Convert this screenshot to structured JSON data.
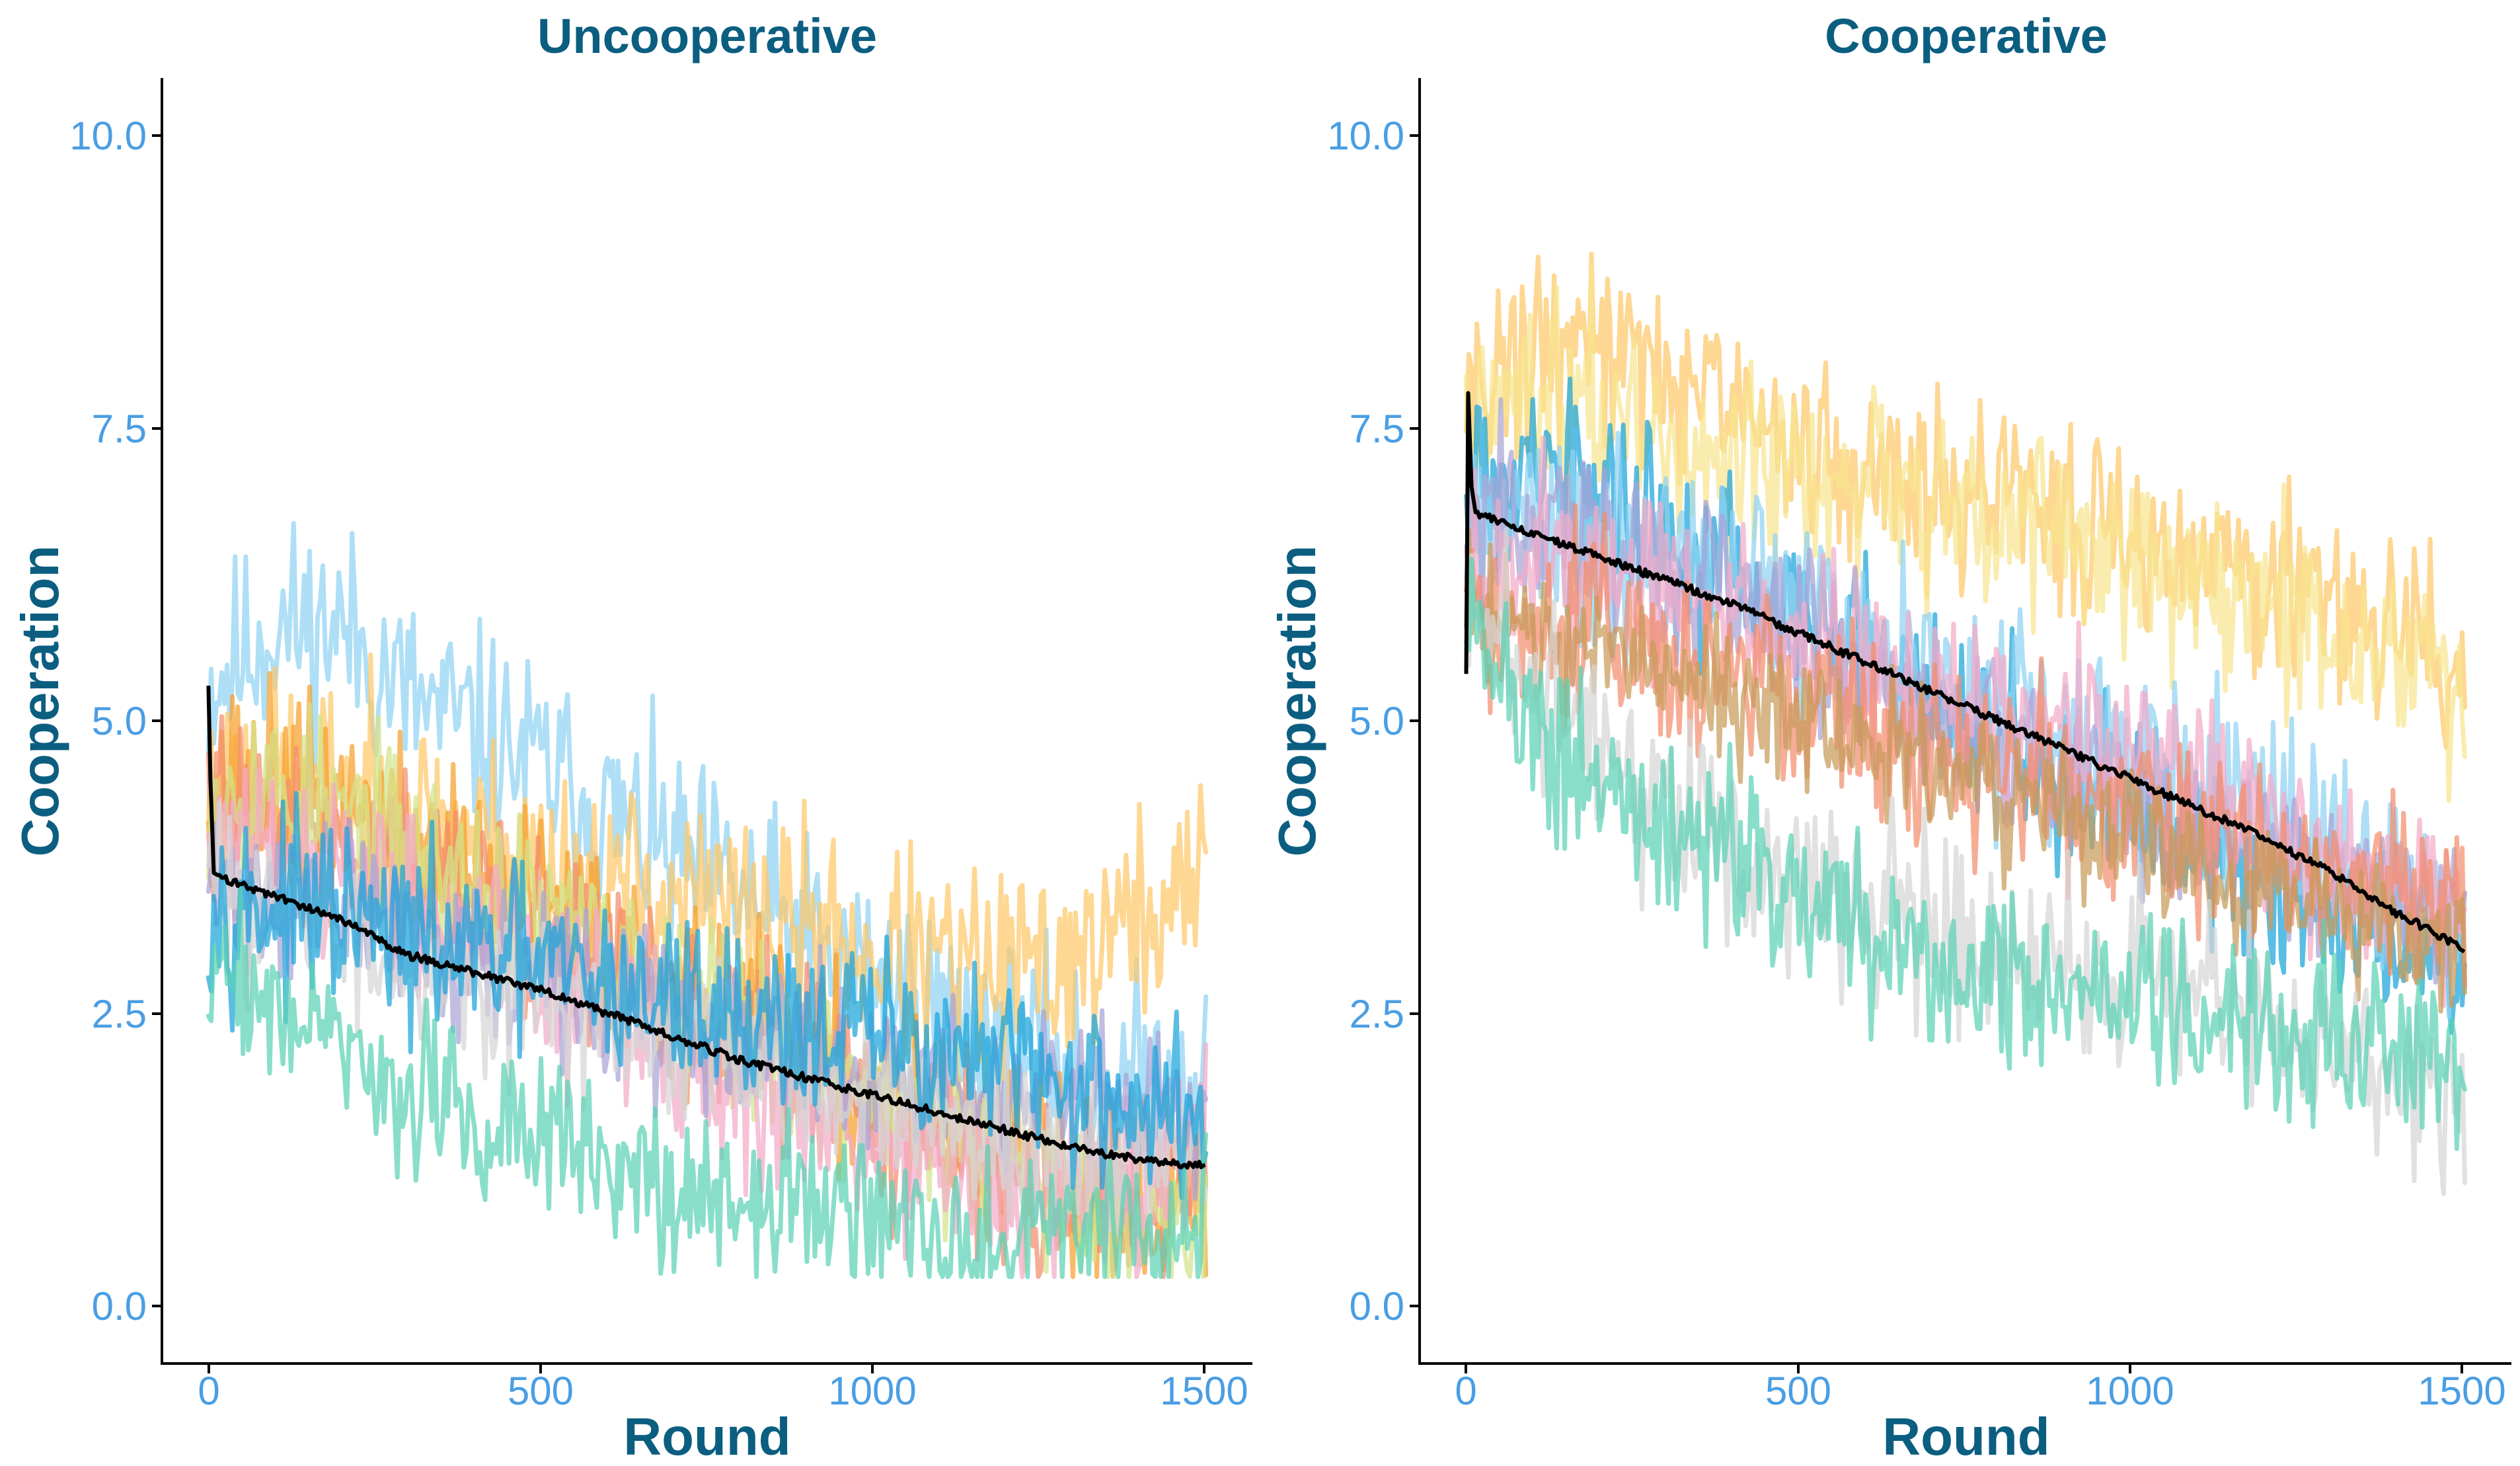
{
  "chart_data": [
    {
      "type": "line",
      "title": "Uncooperative",
      "xlabel": "Round",
      "ylabel": "Cooperation",
      "xlim": [
        -70,
        1570
      ],
      "ylim": [
        -0.5,
        10.5
      ],
      "xticks": [
        0,
        500,
        1000,
        1500
      ],
      "xtick_labels": [
        "0",
        "500",
        "1000",
        "1500"
      ],
      "yticks": [
        0,
        2.5,
        5,
        7.5,
        10
      ],
      "ytick_labels": [
        "0.0",
        "2.5",
        "5.0",
        "7.5",
        "10.0"
      ],
      "grid": false,
      "x": [
        0,
        100,
        200,
        300,
        400,
        500,
        600,
        700,
        800,
        900,
        1000,
        1100,
        1200,
        1300,
        1400,
        1500
      ],
      "series": [
        {
          "name": "light-blue",
          "color": "#8fd3f2",
          "noise": 0.45,
          "seed": 11,
          "values": [
            5.3,
            5.8,
            5.8,
            5.2,
            4.9,
            4.6,
            4.2,
            3.8,
            3.5,
            3.1,
            2.8,
            2.5,
            2.2,
            2.0,
            1.9,
            1.9
          ]
        },
        {
          "name": "light-orange",
          "color": "#fdc76a",
          "noise": 0.45,
          "seed": 23,
          "values": [
            4.4,
            4.5,
            4.4,
            4.2,
            4.0,
            3.8,
            3.6,
            3.5,
            3.3,
            3.2,
            3.0,
            2.9,
            2.8,
            3.0,
            3.3,
            3.6
          ]
        },
        {
          "name": "orange",
          "color": "#f7a02c",
          "noise": 0.4,
          "seed": 37,
          "values": [
            4.5,
            4.5,
            4.3,
            4.0,
            3.7,
            3.4,
            3.1,
            2.7,
            2.4,
            2.1,
            1.8,
            1.5,
            1.2,
            1.0,
            0.9,
            0.9
          ]
        },
        {
          "name": "salmon",
          "color": "#f28e6d",
          "noise": 0.4,
          "seed": 41,
          "values": [
            4.2,
            4.2,
            4.0,
            3.8,
            3.5,
            3.2,
            2.9,
            2.6,
            2.3,
            2.0,
            1.7,
            1.4,
            1.2,
            1.0,
            1.0,
            1.0
          ]
        },
        {
          "name": "yellow-green",
          "color": "#d2e38a",
          "noise": 0.4,
          "seed": 53,
          "values": [
            4.5,
            4.4,
            4.2,
            3.9,
            3.6,
            3.3,
            3.0,
            2.7,
            2.4,
            2.1,
            1.8,
            1.5,
            1.2,
            1.0,
            0.8,
            0.7
          ]
        },
        {
          "name": "pink",
          "color": "#f2aac8",
          "noise": 0.4,
          "seed": 61,
          "values": [
            3.9,
            3.8,
            3.6,
            3.4,
            3.1,
            2.8,
            2.5,
            2.2,
            1.9,
            1.6,
            1.4,
            1.2,
            1.1,
            1.1,
            1.2,
            1.3
          ]
        },
        {
          "name": "lavender",
          "color": "#a9a4d6",
          "noise": 0.35,
          "seed": 71,
          "values": [
            3.6,
            3.5,
            3.4,
            3.2,
            3.0,
            2.8,
            2.6,
            2.4,
            2.3,
            2.1,
            2.0,
            1.9,
            1.8,
            1.7,
            1.6,
            1.6
          ]
        },
        {
          "name": "gray",
          "color": "#d6d6d6",
          "noise": 0.35,
          "seed": 83,
          "values": [
            3.6,
            3.4,
            3.2,
            3.0,
            2.8,
            2.7,
            2.5,
            2.3,
            2.1,
            1.9,
            1.7,
            1.5,
            1.4,
            1.3,
            1.2,
            1.2
          ]
        },
        {
          "name": "blue",
          "color": "#1aa3d9",
          "noise": 0.38,
          "seed": 97,
          "values": [
            3.5,
            3.4,
            3.3,
            3.1,
            3.0,
            2.9,
            2.7,
            2.6,
            2.5,
            2.4,
            2.3,
            2.2,
            2.0,
            1.9,
            1.7,
            1.6
          ]
        },
        {
          "name": "teal",
          "color": "#5bd1b5",
          "noise": 0.35,
          "seed": 109,
          "values": [
            2.9,
            2.6,
            2.2,
            1.8,
            1.6,
            1.4,
            1.2,
            1.0,
            0.9,
            0.8,
            0.8,
            0.7,
            0.7,
            0.7,
            0.7,
            0.7
          ]
        }
      ],
      "mean_line": {
        "name": "mean",
        "color": "#000000",
        "start": [
          5.3,
          4.5,
          3.7
        ],
        "values": [
          3.7,
          3.5,
          3.3,
          3.0,
          2.85,
          2.7,
          2.5,
          2.3,
          2.1,
          1.95,
          1.8,
          1.65,
          1.5,
          1.35,
          1.25,
          1.2
        ]
      }
    },
    {
      "type": "line",
      "title": "Cooperative",
      "xlabel": "Round",
      "ylabel": "Cooperation",
      "xlim": [
        -70,
        1570
      ],
      "ylim": [
        -0.5,
        10.5
      ],
      "xticks": [
        0,
        500,
        1000,
        1500
      ],
      "xtick_labels": [
        "0",
        "500",
        "1000",
        "1500"
      ],
      "yticks": [
        0,
        2.5,
        5,
        7.5,
        10
      ],
      "ytick_labels": [
        "0.0",
        "2.5",
        "5.0",
        "7.5",
        "10.0"
      ],
      "grid": false,
      "x": [
        0,
        100,
        200,
        300,
        400,
        500,
        600,
        700,
        800,
        900,
        1000,
        1100,
        1200,
        1300,
        1400,
        1500
      ],
      "series": [
        {
          "name": "light-orange",
          "color": "#fdc76a",
          "noise": 0.4,
          "seed": 131,
          "values": [
            7.9,
            8.1,
            8.3,
            8.0,
            7.6,
            7.3,
            7.1,
            7.0,
            6.9,
            6.8,
            6.6,
            6.4,
            6.2,
            6.0,
            5.8,
            5.4
          ]
        },
        {
          "name": "pale-yellow",
          "color": "#f7e58f",
          "noise": 0.4,
          "seed": 149,
          "values": [
            7.6,
            7.9,
            7.7,
            7.4,
            7.2,
            7.0,
            6.9,
            6.8,
            6.7,
            6.6,
            6.4,
            6.2,
            6.0,
            5.8,
            5.5,
            5.2
          ]
        },
        {
          "name": "blue",
          "color": "#1aa3d9",
          "noise": 0.38,
          "seed": 157,
          "values": [
            7.2,
            7.1,
            6.9,
            6.6,
            6.3,
            6.0,
            5.6,
            5.2,
            4.9,
            4.6,
            4.3,
            4.0,
            3.6,
            3.3,
            3.0,
            2.9
          ]
        },
        {
          "name": "light-blue",
          "color": "#8fd3f2",
          "noise": 0.42,
          "seed": 163,
          "values": [
            6.8,
            6.7,
            6.6,
            6.4,
            6.2,
            5.9,
            5.6,
            5.3,
            5.0,
            4.8,
            4.6,
            4.4,
            4.2,
            3.9,
            3.6,
            3.3
          ]
        },
        {
          "name": "lavender",
          "color": "#a9a4d6",
          "noise": 0.35,
          "seed": 173,
          "values": [
            6.8,
            6.8,
            6.6,
            6.3,
            6.0,
            5.7,
            5.4,
            5.1,
            4.8,
            4.5,
            4.3,
            4.1,
            3.9,
            3.7,
            3.5,
            3.3
          ]
        },
        {
          "name": "pink",
          "color": "#f2aac8",
          "noise": 0.38,
          "seed": 181,
          "values": [
            6.3,
            6.4,
            6.3,
            6.1,
            5.9,
            5.7,
            5.5,
            5.3,
            5.1,
            4.9,
            4.6,
            4.4,
            4.1,
            3.8,
            3.6,
            3.4
          ]
        },
        {
          "name": "salmon",
          "color": "#f28e6d",
          "noise": 0.4,
          "seed": 191,
          "values": [
            6.1,
            5.9,
            5.8,
            5.6,
            5.4,
            5.2,
            5.0,
            4.8,
            4.6,
            4.4,
            4.2,
            4.0,
            3.9,
            3.7,
            3.6,
            3.5
          ]
        },
        {
          "name": "olive-brown",
          "color": "#c79a5a",
          "noise": 0.3,
          "seed": 197,
          "values": [
            6.0,
            5.8,
            5.6,
            5.4,
            5.2,
            5.0,
            4.8,
            4.6,
            4.4,
            4.2,
            4.0,
            3.8,
            3.6,
            3.4,
            3.2,
            3.1
          ]
        },
        {
          "name": "gray",
          "color": "#d6d6d6",
          "noise": 0.4,
          "seed": 211,
          "values": [
            6.0,
            5.3,
            4.7,
            4.3,
            3.9,
            3.6,
            3.4,
            3.3,
            3.1,
            3.0,
            2.9,
            2.7,
            2.5,
            2.3,
            2.0,
            1.7
          ]
        },
        {
          "name": "teal",
          "color": "#5bd1b5",
          "noise": 0.38,
          "seed": 223,
          "values": [
            5.8,
            4.9,
            4.5,
            4.2,
            3.9,
            3.6,
            3.3,
            3.0,
            2.8,
            2.7,
            2.6,
            2.5,
            2.4,
            2.3,
            2.2,
            2.1
          ]
        }
      ],
      "mean_line": {
        "name": "mean",
        "color": "#000000",
        "start": [
          5.4,
          7.8,
          7.0
        ],
        "values": [
          6.8,
          6.6,
          6.4,
          6.2,
          6.0,
          5.75,
          5.5,
          5.25,
          5.0,
          4.75,
          4.5,
          4.25,
          4.0,
          3.7,
          3.35,
          3.05
        ]
      }
    }
  ]
}
